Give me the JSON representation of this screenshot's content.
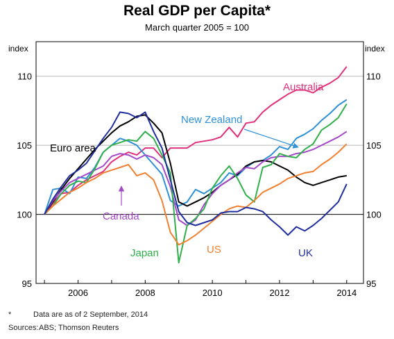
{
  "chart_data": {
    "type": "line",
    "title": "Real GDP per Capita*",
    "subtitle": "March quarter 2005 = 100",
    "ylabel_left": "index",
    "ylabel_right": "index",
    "ylim": [
      95,
      112.5
    ],
    "y_ticks": [
      95,
      100,
      105,
      110
    ],
    "xlim": [
      2004.75,
      2014.5
    ],
    "x_ticks": [
      2006,
      2008,
      2010,
      2012,
      2014
    ],
    "grid": true,
    "series": [
      {
        "name": "Australia",
        "color": "#e0307a",
        "x": [
          2005.0,
          2005.25,
          2005.5,
          2005.75,
          2006.0,
          2006.25,
          2006.5,
          2006.75,
          2007.0,
          2007.25,
          2007.5,
          2007.75,
          2008.0,
          2008.25,
          2008.5,
          2008.75,
          2009.0,
          2009.25,
          2009.5,
          2009.75,
          2010.0,
          2010.25,
          2010.5,
          2010.75,
          2011.0,
          2011.25,
          2011.5,
          2011.75,
          2012.0,
          2012.25,
          2012.5,
          2012.75,
          2013.0,
          2013.25,
          2013.5,
          2013.75,
          2014.0
        ],
        "y": [
          100.0,
          100.8,
          101.5,
          101.6,
          102.1,
          102.5,
          102.8,
          103.1,
          103.8,
          104.2,
          104.5,
          104.3,
          104.8,
          104.8,
          104.1,
          104.8,
          104.8,
          104.8,
          105.2,
          105.3,
          105.4,
          105.6,
          106.3,
          105.6,
          106.6,
          106.7,
          107.4,
          107.9,
          108.3,
          108.7,
          109.0,
          109.0,
          108.8,
          109.2,
          109.5,
          109.9,
          110.7
        ]
      },
      {
        "name": "New Zealand",
        "color": "#2e8fd6",
        "x": [
          2005.0,
          2005.25,
          2005.5,
          2005.75,
          2006.0,
          2006.25,
          2006.5,
          2006.75,
          2007.0,
          2007.25,
          2007.5,
          2007.75,
          2008.0,
          2008.25,
          2008.5,
          2008.75,
          2009.0,
          2009.25,
          2009.5,
          2009.75,
          2010.0,
          2010.25,
          2010.5,
          2010.75,
          2011.0,
          2011.25,
          2011.5,
          2011.75,
          2012.0,
          2012.25,
          2012.5,
          2012.75,
          2013.0,
          2013.25,
          2013.5,
          2013.75,
          2014.0
        ],
        "y": [
          100.0,
          101.8,
          101.9,
          101.5,
          102.7,
          102.6,
          103.4,
          104.5,
          105.0,
          105.5,
          105.3,
          105.0,
          104.3,
          103.6,
          102.9,
          101.0,
          100.6,
          100.9,
          101.8,
          101.5,
          101.9,
          102.3,
          103.0,
          102.8,
          103.4,
          103.8,
          103.9,
          104.3,
          104.9,
          104.7,
          105.5,
          105.8,
          106.2,
          106.8,
          107.3,
          107.9,
          108.3
        ]
      },
      {
        "name": "Euro area",
        "color": "#000000",
        "x": [
          2005.0,
          2005.25,
          2005.5,
          2005.75,
          2006.0,
          2006.25,
          2006.5,
          2006.75,
          2007.0,
          2007.25,
          2007.5,
          2007.75,
          2008.0,
          2008.25,
          2008.5,
          2008.75,
          2009.0,
          2009.25,
          2009.5,
          2009.75,
          2010.0,
          2010.25,
          2010.5,
          2010.75,
          2011.0,
          2011.25,
          2011.5,
          2011.75,
          2012.0,
          2012.25,
          2012.5,
          2012.75,
          2013.0,
          2013.25,
          2013.5,
          2013.75,
          2014.0
        ],
        "y": [
          100.0,
          100.9,
          101.8,
          102.6,
          103.3,
          104.0,
          104.7,
          105.3,
          105.9,
          106.4,
          106.7,
          107.1,
          107.2,
          106.6,
          105.9,
          103.7,
          100.9,
          100.6,
          100.9,
          101.2,
          101.6,
          102.1,
          102.5,
          102.9,
          103.5,
          103.8,
          103.9,
          103.8,
          103.5,
          103.2,
          102.7,
          102.3,
          102.1,
          102.3,
          102.5,
          102.7,
          102.8
        ]
      },
      {
        "name": "Canada",
        "color": "#a248c8",
        "x": [
          2005.0,
          2005.25,
          2005.5,
          2005.75,
          2006.0,
          2006.25,
          2006.5,
          2006.75,
          2007.0,
          2007.25,
          2007.5,
          2007.75,
          2008.0,
          2008.25,
          2008.5,
          2008.75,
          2009.0,
          2009.25,
          2009.5,
          2009.75,
          2010.0,
          2010.25,
          2010.5,
          2010.75,
          2011.0,
          2011.25,
          2011.5,
          2011.75,
          2012.0,
          2012.25,
          2012.5,
          2012.75,
          2013.0,
          2013.25,
          2013.5,
          2013.75,
          2014.0
        ],
        "y": [
          100.0,
          101.0,
          101.7,
          102.3,
          102.6,
          102.9,
          103.2,
          103.5,
          104.2,
          104.4,
          104.3,
          104.0,
          104.3,
          104.1,
          103.6,
          102.0,
          99.6,
          99.2,
          99.6,
          100.7,
          101.5,
          102.1,
          102.5,
          103.0,
          103.4,
          103.3,
          103.8,
          104.1,
          104.2,
          104.2,
          104.4,
          104.5,
          104.7,
          105.0,
          105.3,
          105.6,
          106.0
        ]
      },
      {
        "name": "Japan",
        "color": "#2fb04a",
        "x": [
          2005.0,
          2005.25,
          2005.5,
          2005.75,
          2006.0,
          2006.25,
          2006.5,
          2006.75,
          2007.0,
          2007.25,
          2007.5,
          2007.75,
          2008.0,
          2008.25,
          2008.5,
          2008.75,
          2009.0,
          2009.25,
          2009.5,
          2009.75,
          2010.0,
          2010.25,
          2010.5,
          2010.75,
          2011.0,
          2011.25,
          2011.5,
          2011.75,
          2012.0,
          2012.25,
          2012.5,
          2012.75,
          2013.0,
          2013.25,
          2013.5,
          2013.75,
          2014.0
        ],
        "y": [
          100.0,
          100.6,
          101.5,
          102.1,
          102.4,
          102.3,
          103.3,
          104.5,
          105.0,
          105.2,
          105.4,
          105.3,
          106.0,
          105.5,
          104.3,
          103.0,
          96.5,
          99.2,
          99.7,
          100.4,
          101.9,
          102.8,
          103.5,
          102.6,
          101.4,
          100.9,
          103.4,
          103.6,
          104.4,
          104.2,
          104.1,
          104.7,
          105.1,
          106.1,
          106.5,
          107.0,
          108.0
        ]
      },
      {
        "name": "US",
        "color": "#f08030",
        "x": [
          2005.0,
          2005.25,
          2005.5,
          2005.75,
          2006.0,
          2006.25,
          2006.5,
          2006.75,
          2007.0,
          2007.25,
          2007.5,
          2007.75,
          2008.0,
          2008.25,
          2008.5,
          2008.75,
          2009.0,
          2009.25,
          2009.5,
          2009.75,
          2010.0,
          2010.25,
          2010.5,
          2010.75,
          2011.0,
          2011.25,
          2011.5,
          2011.75,
          2012.0,
          2012.25,
          2012.5,
          2012.75,
          2013.0,
          2013.25,
          2013.5,
          2013.75,
          2014.0
        ],
        "y": [
          100.0,
          100.6,
          101.1,
          101.6,
          101.9,
          102.3,
          102.6,
          103.0,
          103.2,
          103.4,
          103.6,
          102.8,
          103.0,
          102.5,
          101.0,
          98.7,
          97.8,
          98.1,
          98.5,
          99.0,
          99.5,
          100.0,
          100.4,
          100.6,
          100.5,
          101.0,
          101.6,
          101.9,
          102.2,
          102.6,
          102.8,
          103.0,
          103.1,
          103.6,
          104.0,
          104.5,
          105.1
        ]
      },
      {
        "name": "UK",
        "color": "#1f2d9e",
        "x": [
          2005.0,
          2005.25,
          2005.5,
          2005.75,
          2006.0,
          2006.25,
          2006.5,
          2006.75,
          2007.0,
          2007.25,
          2007.5,
          2007.75,
          2008.0,
          2008.25,
          2008.5,
          2008.75,
          2009.0,
          2009.25,
          2009.5,
          2009.75,
          2010.0,
          2010.25,
          2010.5,
          2010.75,
          2011.0,
          2011.25,
          2011.5,
          2011.75,
          2012.0,
          2012.25,
          2012.5,
          2012.75,
          2013.0,
          2013.25,
          2013.5,
          2013.75,
          2014.0
        ],
        "y": [
          100.0,
          101.1,
          102.0,
          102.8,
          103.2,
          103.7,
          104.6,
          105.5,
          106.3,
          107.4,
          107.3,
          107.0,
          107.4,
          106.0,
          104.8,
          102.5,
          100.2,
          99.4,
          99.2,
          99.4,
          99.6,
          100.1,
          100.2,
          100.2,
          100.5,
          100.4,
          100.2,
          99.6,
          99.1,
          98.5,
          99.1,
          98.8,
          99.2,
          99.7,
          100.3,
          100.9,
          102.2
        ]
      }
    ],
    "labels": {
      "australia": "Australia",
      "new_zealand": "New Zealand",
      "euro_area": "Euro area",
      "canada": "Canada",
      "japan": "Japan",
      "us": "US",
      "uk": "UK"
    }
  },
  "footnotes": {
    "note_mark": "*",
    "note_text": "Data are as of 2 September, 2014",
    "sources_label": "Sources:",
    "sources_text": "ABS; Thomson Reuters"
  }
}
